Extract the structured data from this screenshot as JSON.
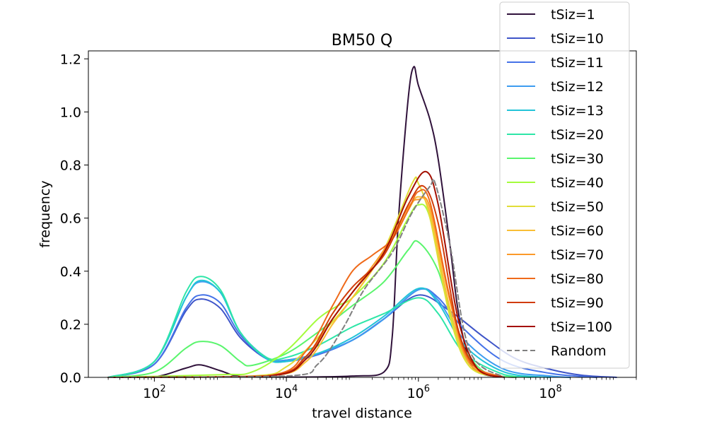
{
  "chart_data": {
    "type": "line",
    "title": "BM50 Q",
    "xlabel": "travel distance",
    "ylabel": "frequency",
    "xscale": "log",
    "xlim": [
      10,
      2000000000
    ],
    "ylim": [
      0,
      1.23
    ],
    "xticks": [
      {
        "exp": "2",
        "value": 100
      },
      {
        "exp": "4",
        "value": 10000
      },
      {
        "exp": "6",
        "value": 1000000
      },
      {
        "exp": "8",
        "value": 100000000
      }
    ],
    "yticks": [
      {
        "label": "0.0",
        "value": 0.0
      },
      {
        "label": "0.2",
        "value": 0.2
      },
      {
        "label": "0.4",
        "value": 0.4
      },
      {
        "label": "0.6",
        "value": 0.6
      },
      {
        "label": "0.8",
        "value": 0.8
      },
      {
        "label": "1.0",
        "value": 1.0
      },
      {
        "label": "1.2",
        "value": 1.2
      }
    ],
    "legend_position": "top-right",
    "series": [
      {
        "name": "tSiz=1",
        "color": "#30123b",
        "dashed": false,
        "points": [
          [
            20,
            0
          ],
          [
            100,
            0.002
          ],
          [
            300,
            0.035
          ],
          [
            500,
            0.047
          ],
          [
            1000,
            0.025
          ],
          [
            2000,
            0.004
          ],
          [
            10000,
            0.001
          ],
          [
            100000,
            0.005
          ],
          [
            300000,
            0.02
          ],
          [
            400000,
            0.15
          ],
          [
            500000,
            0.6
          ],
          [
            700000,
            1.05
          ],
          [
            850000,
            1.17
          ],
          [
            1000000,
            1.1
          ],
          [
            1500000,
            0.97
          ],
          [
            2000000,
            0.82
          ],
          [
            3000000,
            0.5
          ],
          [
            4000000,
            0.25
          ],
          [
            6000000,
            0.06
          ],
          [
            10000000,
            0.01
          ],
          [
            30000000,
            0
          ]
        ]
      },
      {
        "name": "tSiz=10",
        "color": "#3e54c8",
        "dashed": false,
        "points": [
          [
            20,
            0
          ],
          [
            100,
            0.05
          ],
          [
            300,
            0.25
          ],
          [
            500,
            0.295
          ],
          [
            1000,
            0.26
          ],
          [
            2000,
            0.15
          ],
          [
            5000,
            0.07
          ],
          [
            10000,
            0.065
          ],
          [
            30000,
            0.09
          ],
          [
            100000,
            0.14
          ],
          [
            300000,
            0.22
          ],
          [
            1000000,
            0.31
          ],
          [
            3000000,
            0.25
          ],
          [
            10000000,
            0.15
          ],
          [
            30000000,
            0.07
          ],
          [
            100000000,
            0.03
          ],
          [
            300000000,
            0.008
          ],
          [
            1000000000,
            0
          ]
        ]
      },
      {
        "name": "tSiz=11",
        "color": "#4572e8",
        "dashed": false,
        "points": [
          [
            20,
            0
          ],
          [
            100,
            0.05
          ],
          [
            300,
            0.26
          ],
          [
            500,
            0.31
          ],
          [
            1000,
            0.28
          ],
          [
            2000,
            0.16
          ],
          [
            5000,
            0.07
          ],
          [
            10000,
            0.06
          ],
          [
            30000,
            0.085
          ],
          [
            100000,
            0.14
          ],
          [
            300000,
            0.22
          ],
          [
            1000000,
            0.33
          ],
          [
            2000000,
            0.3
          ],
          [
            5000000,
            0.18
          ],
          [
            20000000,
            0.06
          ],
          [
            100000000,
            0.015
          ],
          [
            500000000,
            0
          ]
        ]
      },
      {
        "name": "tSiz=12",
        "color": "#3d9cf0",
        "dashed": false,
        "points": [
          [
            20,
            0
          ],
          [
            100,
            0.06
          ],
          [
            300,
            0.3
          ],
          [
            500,
            0.36
          ],
          [
            1000,
            0.32
          ],
          [
            2000,
            0.17
          ],
          [
            5000,
            0.075
          ],
          [
            10000,
            0.065
          ],
          [
            30000,
            0.09
          ],
          [
            100000,
            0.14
          ],
          [
            300000,
            0.22
          ],
          [
            1000000,
            0.33
          ],
          [
            2000000,
            0.29
          ],
          [
            5000000,
            0.14
          ],
          [
            20000000,
            0.03
          ],
          [
            100000000,
            0.005
          ],
          [
            200000000,
            0
          ]
        ]
      },
      {
        "name": "tSiz=13",
        "color": "#23c4d8",
        "dashed": false,
        "points": [
          [
            20,
            0
          ],
          [
            100,
            0.06
          ],
          [
            300,
            0.3
          ],
          [
            500,
            0.365
          ],
          [
            1000,
            0.32
          ],
          [
            2000,
            0.17
          ],
          [
            5000,
            0.07
          ],
          [
            10000,
            0.06
          ],
          [
            30000,
            0.09
          ],
          [
            100000,
            0.15
          ],
          [
            300000,
            0.23
          ],
          [
            1000000,
            0.335
          ],
          [
            2000000,
            0.28
          ],
          [
            5000000,
            0.12
          ],
          [
            20000000,
            0.02
          ],
          [
            100000000,
            0
          ]
        ]
      },
      {
        "name": "tSiz=20",
        "color": "#2ee6a8",
        "dashed": false,
        "points": [
          [
            20,
            0
          ],
          [
            100,
            0.06
          ],
          [
            300,
            0.32
          ],
          [
            500,
            0.38
          ],
          [
            1000,
            0.33
          ],
          [
            2000,
            0.17
          ],
          [
            5000,
            0.075
          ],
          [
            10000,
            0.075
          ],
          [
            30000,
            0.12
          ],
          [
            100000,
            0.19
          ],
          [
            300000,
            0.24
          ],
          [
            1000000,
            0.3
          ],
          [
            2000000,
            0.24
          ],
          [
            5000000,
            0.09
          ],
          [
            20000000,
            0.01
          ],
          [
            50000000,
            0
          ]
        ]
      },
      {
        "name": "tSiz=30",
        "color": "#5af56d",
        "dashed": false,
        "points": [
          [
            20,
            0
          ],
          [
            100,
            0.02
          ],
          [
            300,
            0.11
          ],
          [
            500,
            0.135
          ],
          [
            1000,
            0.12
          ],
          [
            2000,
            0.06
          ],
          [
            3000,
            0.045
          ],
          [
            10000,
            0.09
          ],
          [
            30000,
            0.17
          ],
          [
            100000,
            0.27
          ],
          [
            300000,
            0.36
          ],
          [
            700000,
            0.48
          ],
          [
            1000000,
            0.51
          ],
          [
            2000000,
            0.4
          ],
          [
            4000000,
            0.15
          ],
          [
            10000000,
            0.02
          ],
          [
            30000000,
            0
          ]
        ]
      },
      {
        "name": "tSiz=40",
        "color": "#a4fc3c",
        "dashed": false,
        "points": [
          [
            20,
            0
          ],
          [
            1000,
            0.01
          ],
          [
            3000,
            0.02
          ],
          [
            10000,
            0.1
          ],
          [
            30000,
            0.22
          ],
          [
            60000,
            0.27
          ],
          [
            100000,
            0.3
          ],
          [
            300000,
            0.43
          ],
          [
            700000,
            0.6
          ],
          [
            1000000,
            0.65
          ],
          [
            1500000,
            0.6
          ],
          [
            3000000,
            0.25
          ],
          [
            6000000,
            0.04
          ],
          [
            20000000,
            0
          ]
        ]
      },
      {
        "name": "tSiz=50",
        "color": "#e1dd37",
        "dashed": false,
        "points": [
          [
            20,
            0
          ],
          [
            3000,
            0.005
          ],
          [
            10000,
            0.04
          ],
          [
            30000,
            0.15
          ],
          [
            100000,
            0.3
          ],
          [
            300000,
            0.48
          ],
          [
            800000,
            0.73
          ],
          [
            1000000,
            0.73
          ],
          [
            1500000,
            0.6
          ],
          [
            3000000,
            0.23
          ],
          [
            6000000,
            0.04
          ],
          [
            20000000,
            0
          ]
        ]
      },
      {
        "name": "tSiz=60",
        "color": "#f9be35",
        "dashed": false,
        "points": [
          [
            20,
            0
          ],
          [
            5000,
            0.005
          ],
          [
            20000,
            0.06
          ],
          [
            50000,
            0.2
          ],
          [
            100000,
            0.3
          ],
          [
            300000,
            0.47
          ],
          [
            700000,
            0.63
          ],
          [
            1000000,
            0.68
          ],
          [
            1500000,
            0.62
          ],
          [
            3000000,
            0.26
          ],
          [
            6000000,
            0.05
          ],
          [
            20000000,
            0
          ]
        ]
      },
      {
        "name": "tSiz=70",
        "color": "#fb9a2a",
        "dashed": false,
        "points": [
          [
            20,
            0
          ],
          [
            5000,
            0.005
          ],
          [
            20000,
            0.08
          ],
          [
            50000,
            0.22
          ],
          [
            100000,
            0.32
          ],
          [
            300000,
            0.48
          ],
          [
            700000,
            0.64
          ],
          [
            1000000,
            0.67
          ],
          [
            1500000,
            0.64
          ],
          [
            3000000,
            0.29
          ],
          [
            6000000,
            0.05
          ],
          [
            20000000,
            0
          ]
        ]
      },
      {
        "name": "tSiz=80",
        "color": "#ef6a1a",
        "dashed": false,
        "points": [
          [
            20,
            0
          ],
          [
            5000,
            0.005
          ],
          [
            20000,
            0.1
          ],
          [
            50000,
            0.27
          ],
          [
            100000,
            0.4
          ],
          [
            200000,
            0.46
          ],
          [
            400000,
            0.52
          ],
          [
            700000,
            0.63
          ],
          [
            1000000,
            0.7
          ],
          [
            1500000,
            0.66
          ],
          [
            3000000,
            0.3
          ],
          [
            6000000,
            0.06
          ],
          [
            20000000,
            0
          ]
        ]
      },
      {
        "name": "tSiz=90",
        "color": "#d13c09",
        "dashed": false,
        "points": [
          [
            20,
            0
          ],
          [
            5000,
            0.005
          ],
          [
            20000,
            0.08
          ],
          [
            50000,
            0.24
          ],
          [
            100000,
            0.34
          ],
          [
            300000,
            0.46
          ],
          [
            700000,
            0.65
          ],
          [
            1200000,
            0.72
          ],
          [
            2000000,
            0.58
          ],
          [
            4000000,
            0.18
          ],
          [
            8000000,
            0.03
          ],
          [
            20000000,
            0
          ]
        ]
      },
      {
        "name": "tSiz=100",
        "color": "#a41002",
        "dashed": false,
        "points": [
          [
            20,
            0
          ],
          [
            5000,
            0.004
          ],
          [
            20000,
            0.07
          ],
          [
            50000,
            0.22
          ],
          [
            100000,
            0.32
          ],
          [
            300000,
            0.47
          ],
          [
            700000,
            0.68
          ],
          [
            1300000,
            0.775
          ],
          [
            2000000,
            0.65
          ],
          [
            4000000,
            0.22
          ],
          [
            8000000,
            0.03
          ],
          [
            20000000,
            0
          ]
        ]
      },
      {
        "name": "Random",
        "color": "#808080",
        "dashed": true,
        "points": [
          [
            20,
            0
          ],
          [
            10000,
            0.005
          ],
          [
            30000,
            0.05
          ],
          [
            70000,
            0.18
          ],
          [
            150000,
            0.33
          ],
          [
            400000,
            0.47
          ],
          [
            800000,
            0.62
          ],
          [
            1500000,
            0.72
          ],
          [
            1800000,
            0.73
          ],
          [
            3000000,
            0.5
          ],
          [
            6000000,
            0.1
          ],
          [
            20000000,
            0
          ]
        ]
      }
    ]
  }
}
